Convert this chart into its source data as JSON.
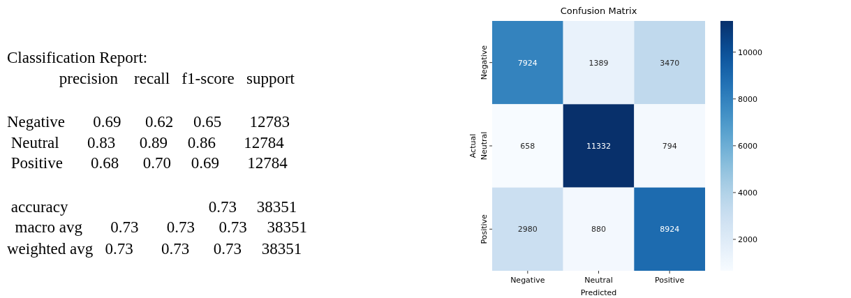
{
  "chart_data": [
    {
      "type": "other",
      "title": "Classification Report:",
      "annotations": [
        "             precision    recall   f1-score   support",
        "Negative       0.69      0.62     0.65       12783",
        " Neutral       0.83      0.89     0.86       12784",
        " Positive       0.68      0.70     0.69       12784",
        " accuracy                                   0.73     38351",
        "  macro avg       0.73       0.73      0.73     38351",
        "weighted avg   0.73       0.73      0.73     38351"
      ]
    },
    {
      "type": "heatmap",
      "title": "Confusion Matrix",
      "xlabel": "Predicted",
      "ylabel": "Actual",
      "categories": [
        "Negative",
        "Neutral",
        "Positive"
      ],
      "y_categories": [
        "Negative",
        "Neutral",
        "Positive"
      ],
      "cells": [
        [
          7924,
          1389,
          3470
        ],
        [
          658,
          11332,
          794
        ],
        [
          2980,
          880,
          8924
        ]
      ],
      "clim": [
        658,
        11332
      ],
      "cticks": [
        2000,
        4000,
        6000,
        8000,
        10000
      ],
      "data_labels": true
    }
  ]
}
